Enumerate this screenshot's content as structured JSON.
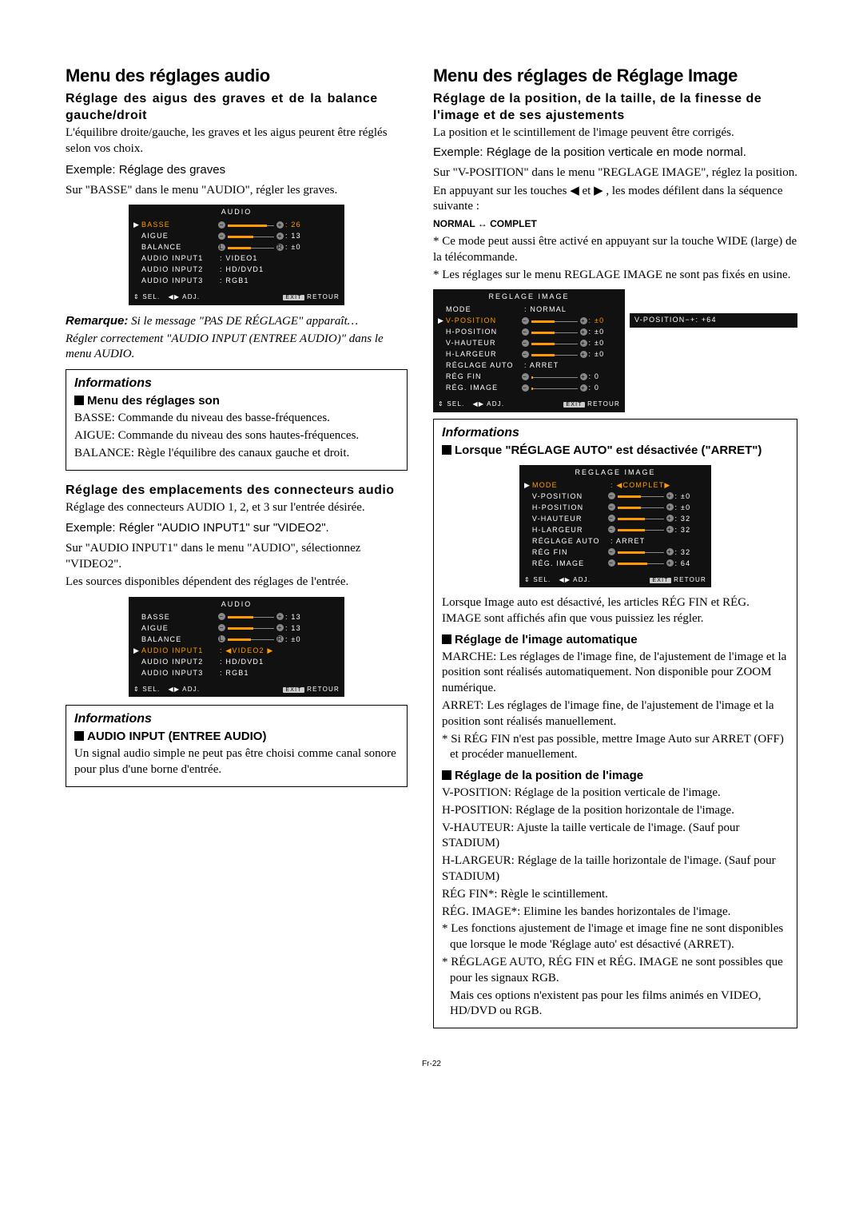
{
  "left": {
    "h1": "Menu des réglages audio",
    "h2a": "Réglage des aigus des graves et de la balance gauche/droit",
    "p1": "L'équilibre droite/gauche, les graves et les aigus peurent être réglés selon vos choix.",
    "ex1": "Exemple: Réglage des graves",
    "p2": "Sur \"BASSE\" dans le menu \"AUDIO\", régler les graves.",
    "remark_label": "Remarque:",
    "remark1": "Si le message \"PAS DE RÉGLAGE\" apparaît…",
    "remark2": "Régler correctement \"AUDIO INPUT (ENTREE AUDIO)\" dans le menu AUDIO.",
    "info1": "Informations",
    "info1_sub": "Menu des réglages son",
    "info1_p1": "BASSE: Commande du niveau des basse-fréquences.",
    "info1_p2": "AIGUE: Commande du niveau des sons hautes-fréquences.",
    "info1_p3": "BALANCE: Règle l'équilibre des canaux gauche et droit.",
    "h2b": "Réglage des emplacements des connecteurs audio",
    "p3": "Réglage des connecteurs AUDIO 1, 2, et 3 sur l'entrée désirée.",
    "ex2": "Exemple: Régler \"AUDIO INPUT1\" sur \"VIDEO2\".",
    "p4": "Sur \"AUDIO INPUT1\" dans le menu \"AUDIO\", sélectionnez \"VIDEO2\".",
    "p5": "Les sources disponibles dépendent des réglages de l'entrée.",
    "info2": "Informations",
    "info2_sub": "AUDIO INPUT (ENTREE AUDIO)",
    "info2_p": "Un signal audio simple ne peut pas être choisi comme canal sonore pour plus d'une borne d'entrée."
  },
  "right": {
    "h1": "Menu des réglages de Réglage Image",
    "h2a": "Réglage de la position, de la taille, de la finesse de l'image et de ses ajustements",
    "p1": "La position et le scintillement de l'image peuvent être corrigés.",
    "ex1": "Exemple: Réglage de la position verticale en mode normal.",
    "p2": "Sur \"V-POSITION\" dans le menu \"REGLAGE IMAGE\", réglez la position.",
    "p3a": "En appuyant sur les touches ",
    "p3b": " et ",
    "p3c": " , les modes défilent dans la séquence suivante :",
    "modeline": "NORMAL ↔ COMPLET",
    "star1": "* Ce mode peut aussi être activé en appuyant sur la touche WIDE (large) de la télécommande.",
    "star2": "* Les réglages sur le menu REGLAGE IMAGE ne sont pas fixés en usine.",
    "info1": "Informations",
    "info1_sub": "Lorsque \"RÉGLAGE AUTO\" est désactivée (\"ARRET\")",
    "p_afterosd": "Lorsque Image auto est désactivé, les articles RÉG FIN et RÉG. IMAGE sont affichés afin que vous puissiez les régler.",
    "sub2": "Réglage de l'image automatique",
    "p_marche": "MARCHE: Les réglages de l'image fine, de l'ajustement de l'image et la position sont réalisés automatiquement. Non disponible pour ZOOM numérique.",
    "p_arret": "ARRET: Les réglages de l'image fine, de l'ajustement de l'image et la position sont réalisés manuellement.",
    "star3": "* Si RÉG FIN n'est pas possible, mettre Image Auto sur ARRET (OFF) et procéder manuellement.",
    "sub3": "Réglage de la position de l'image",
    "p_vpos": "V-POSITION: Réglage de la position verticale de l'image.",
    "p_hpos": "H-POSITION: Réglage de la position horizontale de l'image.",
    "p_vh": "V-HAUTEUR: Ajuste la taille verticale de l'image. (Sauf pour STADIUM)",
    "p_hl": "H-LARGEUR: Réglage de la taille horizontale de l'image. (Sauf pour STADIUM)",
    "p_rf": "RÉG FIN*: Règle le scintillement.",
    "p_ri": "RÉG. IMAGE*: Elimine les bandes horizontales de l'image.",
    "star4": "* Les fonctions ajustement de l'image et image fine ne sont disponibles que lorsque le mode 'Réglage auto' est désactivé (ARRET).",
    "star5": "* RÉGLAGE AUTO, RÉG FIN et RÉG. IMAGE ne sont possibles que pour les signaux RGB.",
    "star5b": "Mais ces options n'existent pas pour les films animés en VIDEO, HD/DVD ou RGB."
  },
  "osd_audio1": {
    "title": "AUDIO",
    "rows": [
      {
        "label": "BASSE",
        "sel": true,
        "slider": true,
        "fill": 0.85,
        "val": ": 26",
        "orange": true
      },
      {
        "label": "AIGUE",
        "slider": true,
        "fill": 0.55,
        "val": ": 13"
      },
      {
        "label": "BALANCE",
        "slider": true,
        "fill": 0.5,
        "val": ": ±0",
        "lr": true
      },
      {
        "label": "AUDIO INPUT1",
        "text": ": VIDEO1"
      },
      {
        "label": "AUDIO INPUT2",
        "text": ": HD/DVD1"
      },
      {
        "label": "AUDIO INPUT3",
        "text": ": RGB1"
      }
    ],
    "footer": {
      "sel": "SEL.",
      "adj": "ADJ.",
      "ret": "RETOUR",
      "exit": "EXIT"
    }
  },
  "osd_audio2": {
    "title": "AUDIO",
    "rows": [
      {
        "label": "BASSE",
        "slider": true,
        "fill": 0.55,
        "val": ": 13"
      },
      {
        "label": "AIGUE",
        "slider": true,
        "fill": 0.55,
        "val": ": 13"
      },
      {
        "label": "BALANCE",
        "slider": true,
        "fill": 0.5,
        "val": ": ±0",
        "lr": true
      },
      {
        "label": "AUDIO INPUT1",
        "sel": true,
        "text": ": ◀VIDEO2 ▶",
        "orange": true
      },
      {
        "label": "AUDIO INPUT2",
        "text": ": HD/DVD1"
      },
      {
        "label": "AUDIO INPUT3",
        "text": ": RGB1"
      }
    ],
    "footer": {
      "sel": "SEL.",
      "adj": "ADJ.",
      "ret": "RETOUR",
      "exit": "EXIT"
    }
  },
  "osd_img1": {
    "title": "REGLAGE IMAGE",
    "rows": [
      {
        "label": "MODE",
        "text": ":   NORMAL"
      },
      {
        "label": "V-POSITION",
        "sel": true,
        "slider": true,
        "fill": 0.5,
        "val": ": ±0",
        "orange": true
      },
      {
        "label": "H-POSITION",
        "slider": true,
        "fill": 0.5,
        "val": ": ±0"
      },
      {
        "label": "V-HAUTEUR",
        "slider": true,
        "fill": 0.5,
        "val": ": ±0"
      },
      {
        "label": "H-LARGEUR",
        "slider": true,
        "fill": 0.5,
        "val": ": ±0"
      },
      {
        "label": "RÉGLAGE AUTO",
        "text": ":   ARRET"
      },
      {
        "label": "RÉG FIN",
        "slider": true,
        "fill": 0.05,
        "val": ": 0"
      },
      {
        "label": "RÉG. IMAGE",
        "slider": true,
        "fill": 0.05,
        "val": ": 0"
      }
    ],
    "footer": {
      "sel": "SEL.",
      "adj": "ADJ.",
      "ret": "RETOUR",
      "exit": "EXIT"
    }
  },
  "osd_mini": {
    "label": "V-POSITION",
    "val": ": +64",
    "fill": 0.95
  },
  "osd_img2": {
    "title": "REGLAGE IMAGE",
    "rows": [
      {
        "label": "MODE",
        "sel": true,
        "text": ": ◀COMPLET▶",
        "orange": true
      },
      {
        "label": "V-POSITION",
        "slider": true,
        "fill": 0.5,
        "val": ": ±0"
      },
      {
        "label": "H-POSITION",
        "slider": true,
        "fill": 0.5,
        "val": ": ±0"
      },
      {
        "label": "V-HAUTEUR",
        "slider": true,
        "fill": 0.6,
        "val": ": 32"
      },
      {
        "label": "H-LARGEUR",
        "slider": true,
        "fill": 0.6,
        "val": ": 32"
      },
      {
        "label": "RÉGLAGE AUTO",
        "text": ":   ARRET"
      },
      {
        "label": "RÉG FIN",
        "slider": true,
        "fill": 0.6,
        "val": ": 32"
      },
      {
        "label": "RÉG. IMAGE",
        "slider": true,
        "fill": 0.65,
        "val": ": 64"
      }
    ],
    "footer": {
      "sel": "SEL.",
      "adj": "ADJ.",
      "ret": "RETOUR",
      "exit": "EXIT"
    }
  },
  "pagefoot": "Fr-22"
}
